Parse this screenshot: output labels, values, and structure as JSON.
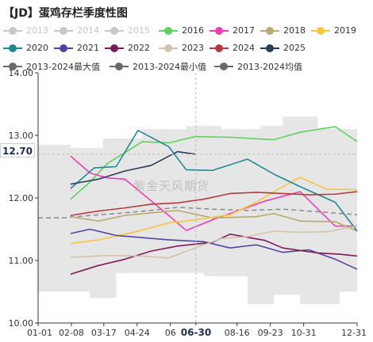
{
  "title": "【JD】蛋鸡存栏季度性图",
  "watermark": "紫金天风期货",
  "crosshair": {
    "y_value_label": "12.70",
    "x_value_label": "06-30"
  },
  "colors": {
    "2013": "#c8c8c8",
    "2014": "#c8c8c8",
    "2015": "#c8c8c8",
    "2016": "#5fd15c",
    "2017": "#ef3fb4",
    "2018": "#b8a96d",
    "2019": "#f8c63b",
    "2020": "#1f8a93",
    "2021": "#5245a3",
    "2022": "#7d1a5a",
    "2023": "#d3c3ac",
    "2024": "#b73a3f",
    "2025": "#2c3d55",
    "band": "#e6e6e6",
    "min": "#6a6a6a",
    "avg": "#8a8a8a"
  },
  "legend": [
    {
      "label": "2013",
      "color": "#c8c8c8",
      "active": false
    },
    {
      "label": "2014",
      "color": "#c8c8c8",
      "active": false
    },
    {
      "label": "2015",
      "color": "#c8c8c8",
      "active": false
    },
    {
      "label": "2016",
      "color": "#5fd15c",
      "active": true
    },
    {
      "label": "2017",
      "color": "#ef3fb4",
      "active": true
    },
    {
      "label": "2018",
      "color": "#b8a96d",
      "active": true
    },
    {
      "label": "2019",
      "color": "#f8c63b",
      "active": true
    },
    {
      "label": "2020",
      "color": "#1f8a93",
      "active": true
    },
    {
      "label": "2021",
      "color": "#5245a3",
      "active": true
    },
    {
      "label": "2022",
      "color": "#7d1a5a",
      "active": true
    },
    {
      "label": "2023",
      "color": "#d3c3ac",
      "active": true
    },
    {
      "label": "2024",
      "color": "#b73a3f",
      "active": true
    },
    {
      "label": "2025",
      "color": "#2c3d55",
      "active": true
    },
    {
      "label": "2013-2024最大值",
      "color": "#6a6a6a",
      "active": true
    },
    {
      "label": "2013-2024最小值",
      "color": "#6a6a6a",
      "active": true
    },
    {
      "label": "2013-2024均值",
      "color": "#6a6a6a",
      "active": true
    }
  ],
  "chart_data": {
    "type": "line",
    "title": "【JD】蛋鸡存栏季度性图",
    "xlabel": "",
    "ylabel": "",
    "ylim": [
      10.0,
      14.0
    ],
    "yticks": [
      10.0,
      11.0,
      12.0,
      13.0,
      14.0
    ],
    "ytick_labels": [
      "10.00",
      "11.00",
      "12.00",
      "13.00",
      "14.00"
    ],
    "xticks": [
      "01-01",
      "02-08",
      "03-17",
      "04-24",
      "06",
      "06-30",
      "08-16",
      "09-23",
      "10-31",
      "12-31"
    ],
    "xtick_days": [
      1,
      39,
      76,
      114,
      152,
      181,
      228,
      266,
      304,
      365
    ],
    "grid": false,
    "legend_position": "top",
    "band_range": [
      [
        1,
        10.5,
        12.85
      ],
      [
        30,
        10.5,
        12.85
      ],
      [
        38,
        10.5,
        12.8
      ],
      [
        60,
        10.4,
        12.8
      ],
      [
        75,
        10.4,
        12.95
      ],
      [
        90,
        10.8,
        12.95
      ],
      [
        120,
        10.8,
        13.1
      ],
      [
        150,
        10.8,
        13.1
      ],
      [
        170,
        10.8,
        13.15
      ],
      [
        190,
        10.75,
        13.15
      ],
      [
        210,
        10.75,
        13.1
      ],
      [
        240,
        10.3,
        13.1
      ],
      [
        255,
        10.3,
        13.15
      ],
      [
        270,
        10.45,
        13.15
      ],
      [
        280,
        10.45,
        13.3
      ],
      [
        300,
        10.3,
        13.3
      ],
      [
        320,
        10.3,
        13.1
      ],
      [
        345,
        10.5,
        13.1
      ],
      [
        365,
        10.5,
        13.15
      ]
    ],
    "average": [
      [
        1,
        11.68
      ],
      [
        30,
        11.68
      ],
      [
        60,
        11.72
      ],
      [
        90,
        11.75
      ],
      [
        130,
        11.8
      ],
      [
        160,
        11.85
      ],
      [
        200,
        11.82
      ],
      [
        240,
        11.8
      ],
      [
        280,
        11.82
      ],
      [
        320,
        11.78
      ],
      [
        365,
        11.73
      ]
    ],
    "series": [
      {
        "name": "2016",
        "points": [
          [
            38,
            11.98
          ],
          [
            60,
            12.25
          ],
          [
            80,
            12.55
          ],
          [
            120,
            12.9
          ],
          [
            150,
            12.88
          ],
          [
            180,
            12.98
          ],
          [
            220,
            12.97
          ],
          [
            270,
            12.93
          ],
          [
            300,
            13.05
          ],
          [
            340,
            13.14
          ],
          [
            365,
            12.9
          ]
        ]
      },
      {
        "name": "2017",
        "points": [
          [
            38,
            12.67
          ],
          [
            60,
            12.4
          ],
          [
            80,
            12.32
          ],
          [
            100,
            12.3
          ],
          [
            150,
            11.72
          ],
          [
            170,
            11.48
          ],
          [
            200,
            11.65
          ],
          [
            260,
            11.95
          ],
          [
            300,
            12.1
          ],
          [
            340,
            11.55
          ],
          [
            365,
            11.55
          ]
        ]
      },
      {
        "name": "2018",
        "points": [
          [
            38,
            11.7
          ],
          [
            70,
            11.63
          ],
          [
            100,
            11.72
          ],
          [
            160,
            11.8
          ],
          [
            200,
            11.68
          ],
          [
            250,
            11.7
          ],
          [
            270,
            11.75
          ],
          [
            300,
            11.63
          ],
          [
            340,
            11.62
          ],
          [
            365,
            11.47
          ]
        ]
      },
      {
        "name": "2019",
        "points": [
          [
            38,
            11.27
          ],
          [
            70,
            11.33
          ],
          [
            110,
            11.45
          ],
          [
            150,
            11.6
          ],
          [
            180,
            11.65
          ],
          [
            220,
            11.73
          ],
          [
            250,
            11.93
          ],
          [
            270,
            12.1
          ],
          [
            300,
            12.33
          ],
          [
            330,
            12.14
          ],
          [
            365,
            12.13
          ]
        ]
      },
      {
        "name": "2020",
        "points": [
          [
            38,
            12.15
          ],
          [
            65,
            12.48
          ],
          [
            90,
            12.5
          ],
          [
            115,
            13.08
          ],
          [
            150,
            12.82
          ],
          [
            170,
            12.45
          ],
          [
            200,
            12.44
          ],
          [
            240,
            12.62
          ],
          [
            270,
            12.38
          ],
          [
            300,
            12.18
          ],
          [
            340,
            11.93
          ],
          [
            365,
            11.47
          ]
        ]
      },
      {
        "name": "2021",
        "points": [
          [
            38,
            11.43
          ],
          [
            60,
            11.5
          ],
          [
            90,
            11.4
          ],
          [
            150,
            11.33
          ],
          [
            190,
            11.3
          ],
          [
            220,
            11.2
          ],
          [
            250,
            11.25
          ],
          [
            280,
            11.13
          ],
          [
            310,
            11.17
          ],
          [
            340,
            11.02
          ],
          [
            365,
            10.86
          ]
        ]
      },
      {
        "name": "2022",
        "points": [
          [
            38,
            10.78
          ],
          [
            70,
            10.92
          ],
          [
            100,
            11.02
          ],
          [
            130,
            11.15
          ],
          [
            160,
            11.23
          ],
          [
            200,
            11.29
          ],
          [
            220,
            11.42
          ],
          [
            260,
            11.32
          ],
          [
            280,
            11.2
          ],
          [
            320,
            11.12
          ],
          [
            345,
            11.1
          ],
          [
            365,
            11.07
          ]
        ]
      },
      {
        "name": "2023",
        "points": [
          [
            38,
            11.05
          ],
          [
            80,
            11.08
          ],
          [
            120,
            11.07
          ],
          [
            150,
            11.04
          ],
          [
            180,
            11.2
          ],
          [
            210,
            11.35
          ],
          [
            240,
            11.38
          ],
          [
            270,
            11.47
          ],
          [
            300,
            11.45
          ],
          [
            330,
            11.46
          ],
          [
            365,
            11.55
          ]
        ]
      },
      {
        "name": "2024",
        "points": [
          [
            38,
            11.72
          ],
          [
            70,
            11.79
          ],
          [
            100,
            11.84
          ],
          [
            130,
            11.9
          ],
          [
            160,
            11.92
          ],
          [
            190,
            11.98
          ],
          [
            220,
            12.07
          ],
          [
            250,
            12.09
          ],
          [
            280,
            12.07
          ],
          [
            310,
            12.05
          ],
          [
            340,
            12.06
          ],
          [
            365,
            12.1
          ]
        ]
      },
      {
        "name": "2025",
        "points": [
          [
            38,
            12.22
          ],
          [
            70,
            12.3
          ],
          [
            100,
            12.43
          ],
          [
            130,
            12.52
          ],
          [
            160,
            12.74
          ],
          [
            180,
            12.7
          ]
        ]
      }
    ]
  }
}
